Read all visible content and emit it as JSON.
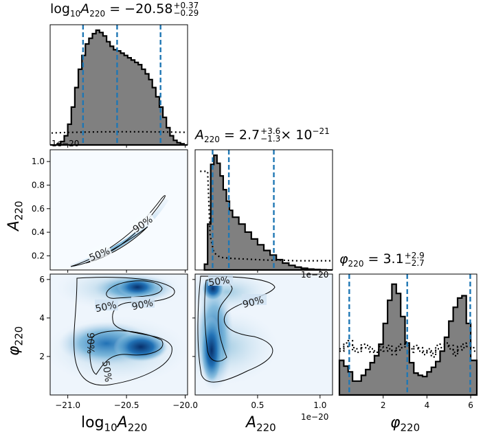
{
  "titles": {
    "logA": {
      "lhs": "log",
      "base": "10",
      "sym": "A",
      "sub": "220",
      "eq": " = −20.58",
      "up": "+0.37",
      "dn": "−0.29"
    },
    "A": {
      "sym": "A",
      "sub": "220",
      "eq": " = 2.7",
      "up": "+3.6",
      "dn": "−1.3",
      "tail": "× 10",
      "exp": "−21"
    },
    "phi": {
      "sym": "φ",
      "sub": "220",
      "eq": " = 3.1",
      "up": "+2.9",
      "dn": "−2.7"
    }
  },
  "axis_labels": {
    "x_logA": {
      "pre": "log",
      "base": "10",
      "sym": "A",
      "sub": "220"
    },
    "x_A": {
      "sym": "A",
      "sub": "220"
    },
    "x_phi": {
      "sym": "φ",
      "sub": "220"
    },
    "y_A": {
      "sym": "A",
      "sub": "220"
    },
    "y_phi": {
      "sym": "φ",
      "sub": "220"
    }
  },
  "offsets": {
    "top_hist": "1e−20",
    "a_hist": "1e−20",
    "x_A": "1e−20"
  },
  "chart_data": {
    "type": "corner",
    "parameters": [
      "log10A220",
      "A220",
      "phi220"
    ],
    "colors": {
      "hist_fill": "#808080",
      "hist_edge": "#000000",
      "quantile": "#1f77b4",
      "prior": "#000000",
      "density": "Blues"
    },
    "hist_logA": {
      "xlim": [
        -21.15,
        -19.98
      ],
      "quantiles": [
        -20.87,
        -20.58,
        -20.21
      ],
      "bins": [
        -21.15,
        -21.12,
        -21.09,
        -21.06,
        -21.03,
        -21.0,
        -20.97,
        -20.94,
        -20.91,
        -20.88,
        -20.85,
        -20.82,
        -20.79,
        -20.76,
        -20.73,
        -20.7,
        -20.67,
        -20.64,
        -20.61,
        -20.58,
        -20.55,
        -20.52,
        -20.49,
        -20.46,
        -20.43,
        -20.4,
        -20.37,
        -20.34,
        -20.31,
        -20.28,
        -20.25,
        -20.22,
        -20.19,
        -20.16,
        -20.13,
        -20.1,
        -20.07,
        -20.04,
        -20.01,
        -19.98
      ],
      "counts": [
        0.0,
        0.0,
        0.01,
        0.03,
        0.08,
        0.18,
        0.33,
        0.5,
        0.66,
        0.78,
        0.88,
        0.93,
        0.97,
        1.0,
        0.98,
        0.95,
        0.9,
        0.86,
        0.83,
        0.82,
        0.8,
        0.78,
        0.76,
        0.74,
        0.72,
        0.7,
        0.66,
        0.62,
        0.57,
        0.5,
        0.42,
        0.33,
        0.24,
        0.15,
        0.08,
        0.04,
        0.02,
        0.01,
        0.0
      ],
      "prior": 0.11
    },
    "hist_A": {
      "xlim": [
        0.0,
        1.1
      ],
      "quantiles": [
        0.14,
        0.27,
        0.63
      ],
      "bins": [
        0.075,
        0.1,
        0.125,
        0.15,
        0.175,
        0.2,
        0.225,
        0.25,
        0.275,
        0.3,
        0.35,
        0.4,
        0.45,
        0.5,
        0.55,
        0.6,
        0.65,
        0.7,
        0.75,
        0.8,
        0.85,
        0.9,
        0.95,
        1.0,
        1.05,
        1.1
      ],
      "counts": [
        0.05,
        0.4,
        0.92,
        1.0,
        0.93,
        0.82,
        0.7,
        0.6,
        0.52,
        0.46,
        0.4,
        0.33,
        0.27,
        0.22,
        0.17,
        0.13,
        0.09,
        0.06,
        0.04,
        0.025,
        0.015,
        0.008,
        0.004,
        0.002,
        0.0
      ],
      "prior_x": [
        0.04,
        0.1,
        0.12,
        0.15,
        0.2,
        0.3,
        0.4,
        0.5,
        0.6,
        0.7,
        0.8,
        0.9,
        1.0,
        1.1
      ],
      "prior_y": [
        0.86,
        0.86,
        0.3,
        0.15,
        0.11,
        0.1,
        0.095,
        0.09,
        0.085,
        0.085,
        0.08,
        0.08,
        0.08,
        0.08
      ]
    },
    "hist_phi": {
      "xlim": [
        0.0,
        6.28
      ],
      "quantiles": [
        0.45,
        3.1,
        5.98
      ],
      "bins": [
        0.0,
        0.2,
        0.4,
        0.6,
        0.8,
        1.0,
        1.2,
        1.4,
        1.6,
        1.8,
        2.0,
        2.2,
        2.4,
        2.6,
        2.8,
        3.0,
        3.2,
        3.4,
        3.6,
        3.8,
        4.0,
        4.2,
        4.4,
        4.6,
        4.8,
        5.0,
        5.2,
        5.4,
        5.6,
        5.8,
        6.0,
        6.28
      ],
      "counts": [
        0.3,
        0.25,
        0.2,
        0.12,
        0.12,
        0.17,
        0.22,
        0.28,
        0.34,
        0.44,
        0.62,
        0.82,
        0.96,
        0.88,
        0.68,
        0.45,
        0.28,
        0.19,
        0.17,
        0.16,
        0.2,
        0.24,
        0.29,
        0.38,
        0.5,
        0.64,
        0.76,
        0.84,
        0.86,
        0.62,
        0.3
      ],
      "prior_a": [
        0.4,
        0.45,
        0.47,
        0.41,
        0.4,
        0.44,
        0.43,
        0.4,
        0.37,
        0.42,
        0.41,
        0.43,
        0.38,
        0.42,
        0.44,
        0.46,
        0.4,
        0.43,
        0.41,
        0.38,
        0.4,
        0.36,
        0.43,
        0.44,
        0.45,
        0.43,
        0.37,
        0.42,
        0.44,
        0.45,
        0.41
      ],
      "prior_b": [
        0.38,
        0.42,
        0.44,
        0.38,
        0.37,
        0.41,
        0.4,
        0.37,
        0.34,
        0.39,
        0.38,
        0.4,
        0.35,
        0.39,
        0.41,
        0.43,
        0.37,
        0.4,
        0.38,
        0.35,
        0.37,
        0.33,
        0.4,
        0.41,
        0.42,
        0.4,
        0.34,
        0.39,
        0.41,
        0.42,
        0.38
      ]
    },
    "panel_logA_A": {
      "xlim": [
        -21.15,
        -19.98
      ],
      "ylim": [
        0.08,
        1.1
      ],
      "xticks": [
        -21.0,
        -20.5,
        -20.0
      ],
      "yticks": [
        0.2,
        0.4,
        0.6,
        0.8,
        1.0
      ],
      "ytick_labels": [
        "0.2",
        "0.4",
        "0.6",
        "0.8",
        "1.0"
      ],
      "contour_labels": [
        "50%",
        "90%"
      ]
    },
    "panel_logA_phi": {
      "xlim": [
        -21.15,
        -19.98
      ],
      "ylim": [
        0.0,
        6.28
      ],
      "xticks": [
        -21.0,
        -20.5,
        -20.0
      ],
      "xtick_labels": [
        "−21.0",
        "−20.5",
        "−20.0"
      ],
      "yticks": [
        2,
        4,
        6
      ],
      "ytick_labels": [
        "2",
        "4",
        "6"
      ],
      "contour_labels": [
        "50%",
        "90%",
        "90%",
        "50%"
      ]
    },
    "panel_A_phi": {
      "xlim": [
        0.0,
        1.1
      ],
      "ylim": [
        0.0,
        6.28
      ],
      "xticks": [
        0.5,
        1.0
      ],
      "xtick_labels": [
        "0.5",
        "1.0"
      ],
      "contour_labels": [
        "50%",
        "90%",
        "90%"
      ]
    },
    "phi_axis": {
      "xticks": [
        2,
        4,
        6
      ],
      "xtick_labels": [
        "2",
        "4",
        "6"
      ]
    }
  }
}
